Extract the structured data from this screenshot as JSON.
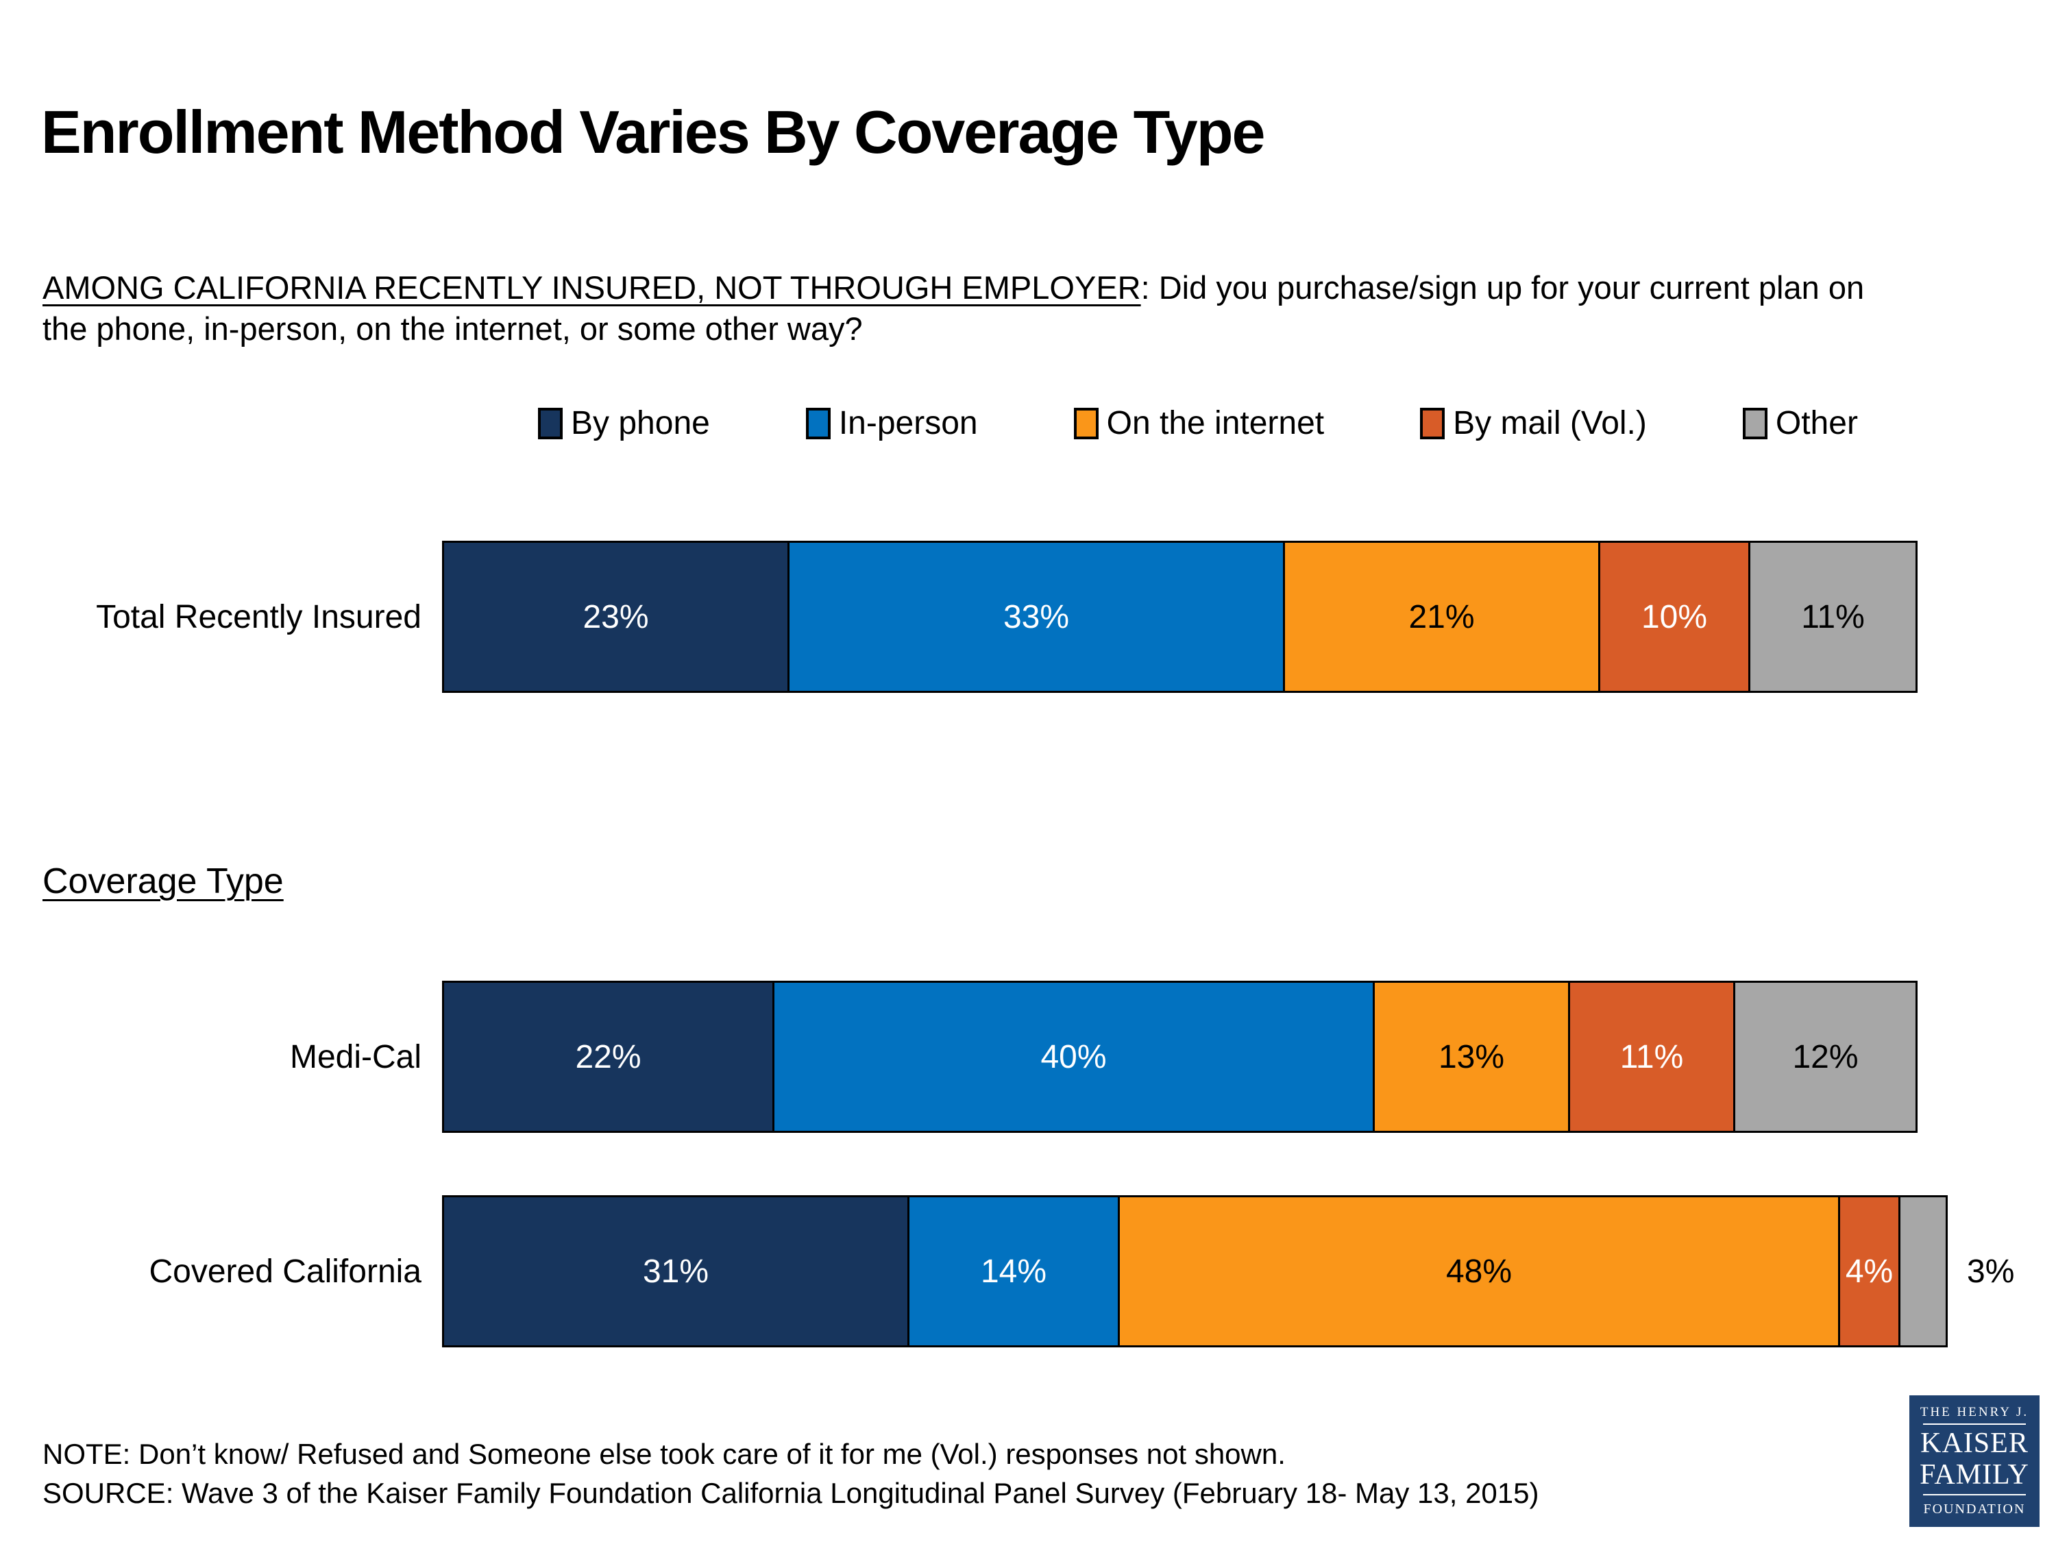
{
  "title": "Enrollment Method Varies By Coverage Type",
  "subtitle": {
    "lead": "AMONG CALIFORNIA RECENTLY INSURED, NOT THROUGH EMPLOYER",
    "rest": ": Did you purchase/sign up for your current plan on",
    "line2": "the phone, in-person, on the internet, or some other way?"
  },
  "section_heading": "Coverage Type",
  "chart_data": {
    "type": "bar",
    "variant": "horizontal_stacked",
    "unit": "percent",
    "value_suffix": "%",
    "xlim": [
      0,
      100
    ],
    "legend_position": "top",
    "grid": false,
    "categories": [
      "Total Recently Insured",
      "Medi-Cal",
      "Covered California"
    ],
    "category_section": [
      "",
      "Coverage Type",
      "Coverage Type"
    ],
    "series": [
      {
        "name": "By phone",
        "color": "#17355D",
        "label_color": "#FFFFFF",
        "values": [
          23,
          22,
          31
        ]
      },
      {
        "name": "In-person",
        "color": "#0272C0",
        "label_color": "#FFFFFF",
        "values": [
          33,
          40,
          14
        ]
      },
      {
        "name": "On the internet",
        "color": "#FA9619",
        "label_color": "#000000",
        "values": [
          21,
          13,
          48
        ]
      },
      {
        "name": "By mail (Vol.)",
        "color": "#D85C28",
        "label_color": "#FFFFFF",
        "values": [
          10,
          11,
          4
        ]
      },
      {
        "name": "Other",
        "color": "#A7A7A7",
        "label_color": "#000000",
        "values": [
          11,
          12,
          3
        ]
      }
    ]
  },
  "footer": {
    "note": "NOTE: Don’t know/ Refused and Someone else took care of it for me (Vol.) responses not shown.",
    "source": "SOURCE: Wave 3 of the Kaiser Family Foundation California Longitudinal Panel Survey (February 18- May 13, 2015)"
  },
  "logo": {
    "line1": "THE HENRY J.",
    "line2": "KAISER",
    "line3": "FAMILY",
    "line4": "FOUNDATION",
    "background": "#1F416F"
  }
}
